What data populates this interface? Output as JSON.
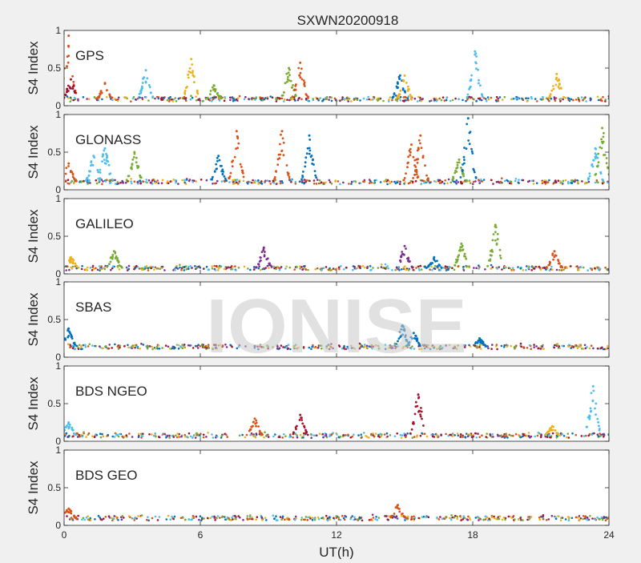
{
  "chart_data": {
    "type": "scatter",
    "title": "SXWN20200918",
    "xlabel": "UT(h)",
    "xlim": [
      0,
      24
    ],
    "xticks": [
      0,
      6,
      12,
      18,
      24
    ],
    "xtick_labels": [
      "0",
      "6",
      "12",
      "18",
      "24"
    ],
    "watermark": "IONISE",
    "series_colors": [
      "#0072BD",
      "#D95319",
      "#EDB120",
      "#7E2F8E",
      "#77AC30",
      "#4DBEEE",
      "#A2142F"
    ],
    "panels": [
      {
        "label": "GPS",
        "ylabel": "S4 Index",
        "ylim": [
          0,
          1
        ],
        "yticks": [
          0,
          0.5,
          1
        ],
        "ytick_labels": [
          "0",
          "0.5",
          "1"
        ],
        "baseline": 0.08,
        "events": [
          {
            "t": 0.2,
            "peak": 0.93,
            "c": 1
          },
          {
            "t": 0.3,
            "peak": 0.35,
            "c": 6
          },
          {
            "t": 1.8,
            "peak": 0.3,
            "c": 1
          },
          {
            "t": 3.6,
            "peak": 0.47,
            "c": 5
          },
          {
            "t": 5.6,
            "peak": 0.62,
            "c": 2
          },
          {
            "t": 6.6,
            "peak": 0.27,
            "c": 4
          },
          {
            "t": 9.9,
            "peak": 0.5,
            "c": 4
          },
          {
            "t": 10.4,
            "peak": 0.57,
            "c": 1
          },
          {
            "t": 14.8,
            "peak": 0.4,
            "c": 0
          },
          {
            "t": 15.0,
            "peak": 0.4,
            "c": 2
          },
          {
            "t": 18.1,
            "peak": 0.72,
            "c": 5
          },
          {
            "t": 21.7,
            "peak": 0.42,
            "c": 2
          }
        ]
      },
      {
        "label": "GLONASS",
        "ylabel": "S4 Index",
        "ylim": [
          0,
          1
        ],
        "yticks": [
          0,
          0.5,
          1
        ],
        "ytick_labels": [
          "0",
          "0.5",
          "1"
        ],
        "baseline": 0.1,
        "events": [
          {
            "t": 0.2,
            "peak": 0.35,
            "c": 1
          },
          {
            "t": 1.3,
            "peak": 0.45,
            "c": 5
          },
          {
            "t": 1.8,
            "peak": 0.55,
            "c": 5
          },
          {
            "t": 3.1,
            "peak": 0.5,
            "c": 4
          },
          {
            "t": 6.8,
            "peak": 0.45,
            "c": 0
          },
          {
            "t": 7.6,
            "peak": 0.78,
            "c": 1
          },
          {
            "t": 9.6,
            "peak": 0.78,
            "c": 1
          },
          {
            "t": 10.8,
            "peak": 0.72,
            "c": 0
          },
          {
            "t": 15.3,
            "peak": 0.6,
            "c": 1
          },
          {
            "t": 15.7,
            "peak": 0.72,
            "c": 1
          },
          {
            "t": 17.4,
            "peak": 0.4,
            "c": 4
          },
          {
            "t": 17.8,
            "peak": 0.95,
            "c": 0
          },
          {
            "t": 23.4,
            "peak": 0.55,
            "c": 5
          },
          {
            "t": 23.7,
            "peak": 0.82,
            "c": 4
          }
        ]
      },
      {
        "label": "GALILEO",
        "ylabel": "S4 Index",
        "ylim": [
          0,
          1
        ],
        "yticks": [
          0,
          0.5,
          1
        ],
        "ytick_labels": [
          "0",
          "0.5",
          "1"
        ],
        "baseline": 0.07,
        "events": [
          {
            "t": 0.3,
            "peak": 0.22,
            "c": 2
          },
          {
            "t": 2.2,
            "peak": 0.3,
            "c": 4
          },
          {
            "t": 8.8,
            "peak": 0.35,
            "c": 3
          },
          {
            "t": 15.0,
            "peak": 0.37,
            "c": 3
          },
          {
            "t": 16.3,
            "peak": 0.22,
            "c": 0
          },
          {
            "t": 17.5,
            "peak": 0.4,
            "c": 4
          },
          {
            "t": 19.0,
            "peak": 0.65,
            "c": 4
          },
          {
            "t": 21.6,
            "peak": 0.3,
            "c": 1
          }
        ]
      },
      {
        "label": "SBAS",
        "ylabel": "S4 Index",
        "ylim": [
          0,
          1
        ],
        "yticks": [
          0,
          0.5,
          1
        ],
        "ytick_labels": [
          "0",
          "0.5",
          "1"
        ],
        "baseline": 0.13,
        "events": [
          {
            "t": 0.2,
            "peak": 0.38,
            "c": 0
          },
          {
            "t": 14.9,
            "peak": 0.42,
            "c": 0
          },
          {
            "t": 15.4,
            "peak": 0.32,
            "c": 0
          },
          {
            "t": 18.3,
            "peak": 0.25,
            "c": 0
          }
        ]
      },
      {
        "label": "BDS NGEO",
        "ylabel": "S4 Index",
        "ylim": [
          0,
          1
        ],
        "yticks": [
          0,
          0.5,
          1
        ],
        "ytick_labels": [
          "0",
          "0.5",
          "1"
        ],
        "baseline": 0.07,
        "events": [
          {
            "t": 0.2,
            "peak": 0.25,
            "c": 5
          },
          {
            "t": 8.4,
            "peak": 0.3,
            "c": 1
          },
          {
            "t": 10.4,
            "peak": 0.35,
            "c": 6
          },
          {
            "t": 15.6,
            "peak": 0.62,
            "c": 6
          },
          {
            "t": 21.5,
            "peak": 0.2,
            "c": 2
          },
          {
            "t": 23.3,
            "peak": 0.73,
            "c": 5
          }
        ]
      },
      {
        "label": "BDS GEO",
        "ylabel": "S4 Index",
        "ylim": [
          0,
          1
        ],
        "yticks": [
          0,
          0.5,
          1
        ],
        "ytick_labels": [
          "0",
          "0.5",
          "1"
        ],
        "baseline": 0.09,
        "events": [
          {
            "t": 0.2,
            "peak": 0.22,
            "c": 1
          },
          {
            "t": 14.7,
            "peak": 0.27,
            "c": 1
          }
        ]
      }
    ]
  }
}
